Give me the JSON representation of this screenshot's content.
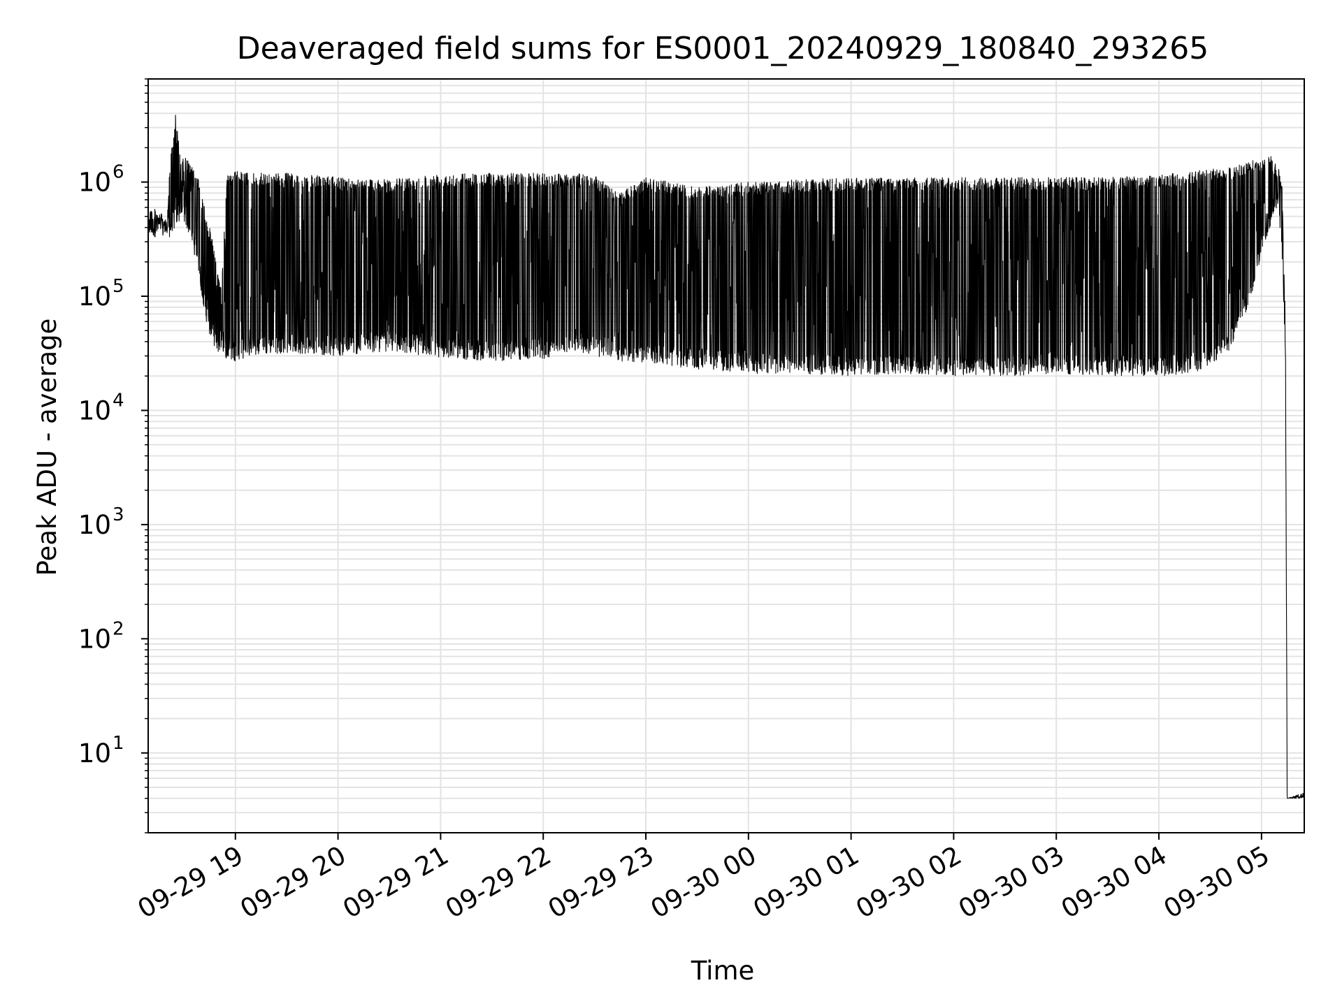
{
  "chart_data": {
    "type": "line",
    "title": "Deaveraged field sums for ES0001_20240929_180840_293265",
    "xlabel": "Time",
    "ylabel": "Peak ADU - average",
    "x_scale": "time",
    "y_scale": "log",
    "xlim": [
      "2024-09-29 18:09",
      "2024-09-30 05:25"
    ],
    "ylim": [
      2,
      8000000
    ],
    "grid": "major and minor, light gray",
    "legend": "none",
    "x_ticks": [
      "2024-09-29 19:00",
      "2024-09-29 20:00",
      "2024-09-29 21:00",
      "2024-09-29 22:00",
      "2024-09-29 23:00",
      "2024-09-30 00:00",
      "2024-09-30 01:00",
      "2024-09-30 02:00",
      "2024-09-30 03:00",
      "2024-09-30 04:00",
      "2024-09-30 05:00"
    ],
    "x_tick_labels": [
      "09-29 19",
      "09-29 20",
      "09-29 21",
      "09-29 22",
      "09-29 23",
      "09-30 00",
      "09-30 01",
      "09-30 02",
      "09-30 03",
      "09-30 04",
      "09-30 05"
    ],
    "y_ticks": [
      10,
      100,
      1000,
      10000,
      100000,
      1000000
    ],
    "y_tick_labels": [
      {
        "base": "10",
        "exp": "1"
      },
      {
        "base": "10",
        "exp": "2"
      },
      {
        "base": "10",
        "exp": "3"
      },
      {
        "base": "10",
        "exp": "4"
      },
      {
        "base": "10",
        "exp": "5"
      },
      {
        "base": "10",
        "exp": "6"
      }
    ],
    "series_color": "#000000",
    "series": [
      {
        "x": [
          "2024-09-29 18:09",
          "2024-09-29 18:14",
          "2024-09-29 18:20",
          "2024-09-29 18:22",
          "2024-09-29 18:25",
          "2024-09-29 18:28",
          "2024-09-29 18:31",
          "2024-09-29 18:34",
          "2024-09-29 18:37",
          "2024-09-29 18:40",
          "2024-09-29 18:43",
          "2024-09-29 18:46",
          "2024-09-29 18:49",
          "2024-09-29 18:52",
          "2024-09-29 18:55",
          "2024-09-29 19:00",
          "2024-09-29 19:10",
          "2024-09-29 19:30",
          "2024-09-29 20:00",
          "2024-09-29 20:30",
          "2024-09-29 21:00",
          "2024-09-29 21:30",
          "2024-09-29 22:00",
          "2024-09-29 22:15",
          "2024-09-29 22:30",
          "2024-09-29 22:45",
          "2024-09-29 23:00",
          "2024-09-29 23:30",
          "2024-09-30 00:00",
          "2024-09-30 00:30",
          "2024-09-30 01:00",
          "2024-09-30 01:30",
          "2024-09-30 02:00",
          "2024-09-30 02:30",
          "2024-09-30 03:00",
          "2024-09-30 03:30",
          "2024-09-30 04:00",
          "2024-09-30 04:20",
          "2024-09-30 04:40",
          "2024-09-30 04:55",
          "2024-09-30 05:00",
          "2024-09-30 05:05",
          "2024-09-30 05:10",
          "2024-09-30 05:12",
          "2024-09-30 05:14",
          "2024-09-30 05:15",
          "2024-09-30 05:25"
        ],
        "low": [
          330000,
          330000,
          320000,
          330000,
          400000,
          450000,
          420000,
          300000,
          200000,
          110000,
          60000,
          40000,
          33000,
          30000,
          28000,
          27000,
          30000,
          32000,
          30000,
          33000,
          29000,
          27000,
          28000,
          33000,
          30000,
          27000,
          26000,
          23000,
          21000,
          21000,
          20000,
          21000,
          20000,
          20000,
          21000,
          20000,
          20000,
          21000,
          30000,
          100000,
          250000,
          400000,
          600000,
          200000,
          25000,
          4,
          4
        ],
        "high": [
          600000,
          600000,
          450000,
          1800000,
          4000000,
          1500000,
          1700000,
          1400000,
          1200000,
          900000,
          500000,
          350000,
          200000,
          120000,
          1200000,
          1250000,
          1200000,
          1200000,
          1100000,
          1050000,
          1200000,
          1200000,
          1200000,
          1200000,
          1150000,
          800000,
          1100000,
          900000,
          1000000,
          1050000,
          1100000,
          1100000,
          1100000,
          1100000,
          1100000,
          1100000,
          1150000,
          1250000,
          1350000,
          1600000,
          1500000,
          1800000,
          1300000,
          900000,
          60000,
          4,
          4.5
        ]
      }
    ]
  }
}
